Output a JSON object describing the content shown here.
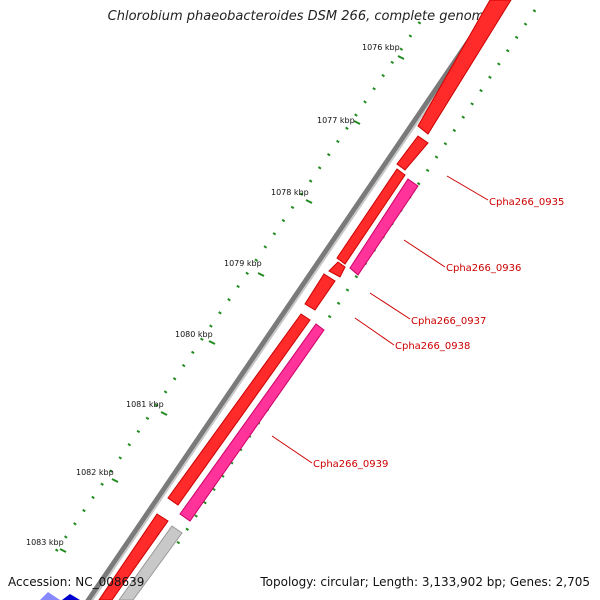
{
  "title": "Chlorobium phaeobacteroides DSM 266, complete genome",
  "accession_text": "Accession: NC_008639",
  "summary_text": "Topology: circular; Length: 3,133,902 bp; Genes: 2,705",
  "ticks": [
    "1076 kbp",
    "1077 kbp",
    "1078 kbp",
    "1079 kbp",
    "1080 kbp",
    "1081 kbp",
    "1082 kbp",
    "1083 kbp"
  ],
  "genes": [
    {
      "name": "Cpha266_0935",
      "strand": "forward"
    },
    {
      "name": "Cpha266_0936",
      "strand": "reverse"
    },
    {
      "name": "Cpha266_0937",
      "strand": "forward"
    },
    {
      "name": "Cpha266_0938",
      "strand": "forward"
    },
    {
      "name": "Cpha266_0939",
      "strand": "reverse"
    }
  ],
  "colors": {
    "backbone": "#808080",
    "forward_gene": "#ff0000",
    "reverse_gene": "#ff3399",
    "other_gene": "#c8c8c8",
    "tick": "#228b22",
    "label": "#cc0000"
  }
}
